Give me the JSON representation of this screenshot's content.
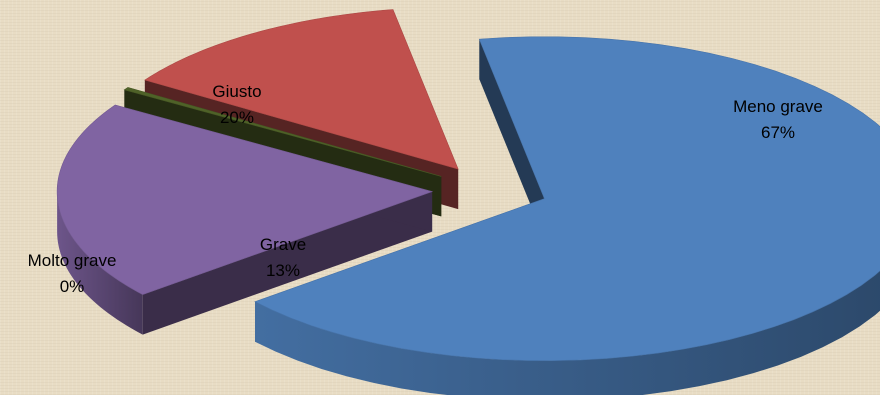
{
  "chart_data": {
    "type": "pie",
    "title": "",
    "categories": [
      "Meno grave",
      "Giusto",
      "Molto grave",
      "Grave"
    ],
    "values": [
      67,
      20,
      0,
      13
    ],
    "labels": [
      {
        "name": "Meno grave",
        "percent": "67%"
      },
      {
        "name": "Giusto",
        "percent": "20%"
      },
      {
        "name": "Molto grave",
        "percent": "0%"
      },
      {
        "name": "Grave",
        "percent": "13%"
      }
    ],
    "colors": [
      "#4f81bd",
      "#8064a2",
      "#4f6228",
      "#c0504d"
    ],
    "exploded": true,
    "legend": "none",
    "style": "3d"
  },
  "background_color": "#e8dcc4"
}
